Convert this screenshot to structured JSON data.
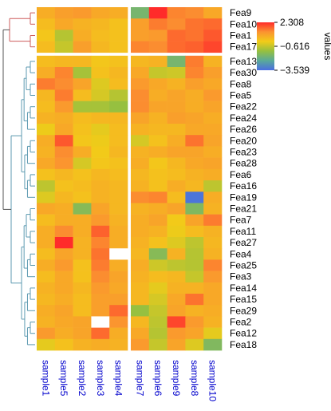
{
  "chart_data": {
    "type": "heatmap",
    "columns": [
      "sample1",
      "sample5",
      "sample2",
      "sample3",
      "sample4",
      "sample7",
      "sample6",
      "sample9",
      "sample8",
      "sample10"
    ],
    "rows": [
      "Fea9",
      "Fea10",
      "Fea1",
      "Fea17",
      "Fea13",
      "Fea30",
      "Fea8",
      "Fea5",
      "Fea22",
      "Fea24",
      "Fea26",
      "Fea20",
      "Fea23",
      "Fea28",
      "Fea6",
      "Fea16",
      "Fea19",
      "Fea21",
      "Fea7",
      "Fea11",
      "Fea27",
      "Fea4",
      "Fea25",
      "Fea3",
      "Fea14",
      "Fea15",
      "Fea29",
      "Fea2",
      "Fea12",
      "Fea18"
    ],
    "row_split": 4,
    "col_split": 5,
    "values": [
      [
        0.6,
        0.9,
        1.0,
        0.7,
        0.6,
        -1.8,
        2.3,
        1.3,
        1.2,
        0.7
      ],
      [
        0.3,
        0.7,
        0.5,
        0.4,
        0.2,
        0.9,
        1.4,
        1.2,
        1.5,
        1.6
      ],
      [
        0.1,
        -0.8,
        0.6,
        0.3,
        0.2,
        0.9,
        1.0,
        1.6,
        1.5,
        1.8
      ],
      [
        0.3,
        -0.6,
        0.9,
        0.4,
        0.2,
        1.3,
        1.2,
        1.6,
        1.7,
        2.0
      ],
      [
        0.3,
        0.4,
        0.4,
        0.1,
        0.2,
        0.4,
        0.5,
        -1.8,
        1.4,
        0.5
      ],
      [
        0.6,
        1.3,
        -1.0,
        0.2,
        0.4,
        0.7,
        -0.6,
        -0.5,
        1.3,
        0.9
      ],
      [
        1.4,
        1.2,
        0.8,
        -0.3,
        0.3,
        1.0,
        0.7,
        0.5,
        0.9,
        0.7
      ],
      [
        0.4,
        1.4,
        0.3,
        -0.4,
        -0.8,
        1.2,
        0.6,
        0.8,
        0.6,
        1.0
      ],
      [
        0.3,
        1.0,
        -1.0,
        -1.0,
        -1.2,
        1.2,
        0.8,
        0.8,
        0.6,
        0.8
      ],
      [
        0.5,
        0.6,
        0.3,
        0.4,
        0.4,
        0.8,
        0.5,
        0.9,
        0.8,
        0.6
      ],
      [
        -0.1,
        0.7,
        0.2,
        -0.2,
        0.3,
        0.5,
        0.4,
        0.4,
        0.7,
        0.7
      ],
      [
        0.6,
        1.8,
        0.1,
        -0.1,
        0.3,
        -0.4,
        0.2,
        0.6,
        1.5,
        0.8
      ],
      [
        0.5,
        1.2,
        0.6,
        0.0,
        0.4,
        0.5,
        0.6,
        0.8,
        0.8,
        0.6
      ],
      [
        0.7,
        1.1,
        -0.4,
        0.1,
        0.2,
        0.6,
        0.1,
        0.4,
        0.7,
        0.8
      ],
      [
        0.2,
        0.4,
        0.2,
        0.4,
        0.3,
        0.4,
        0.2,
        0.3,
        0.5,
        0.6
      ],
      [
        -0.7,
        0.2,
        0.3,
        0.5,
        0.4,
        0.5,
        0.2,
        0.6,
        0.4,
        -0.7
      ],
      [
        -0.3,
        0.4,
        0.2,
        0.5,
        0.4,
        1.2,
        1.3,
        0.3,
        -3.4,
        0.6
      ],
      [
        0.7,
        0.6,
        -1.5,
        0.8,
        0.4,
        0.5,
        0.6,
        0.8,
        -1.6,
        0.5
      ],
      [
        0.3,
        0.6,
        0.6,
        1.0,
        0.5,
        0.6,
        0.8,
        0.0,
        0.8,
        1.4
      ],
      [
        0.6,
        1.2,
        0.6,
        1.7,
        0.6,
        0.6,
        0.5,
        -0.1,
        0.3,
        0.5
      ],
      [
        0.6,
        2.3,
        0.5,
        1.3,
        0.6,
        0.5,
        0.2,
        -0.3,
        -0.7,
        0.4
      ],
      [
        0.3,
        0.8,
        0.5,
        1.5,
        null,
        0.4,
        -1.5,
        0.5,
        -0.8,
        0.5
      ],
      [
        0.6,
        1.0,
        0.2,
        1.4,
        0.6,
        0.6,
        -0.5,
        -0.7,
        -0.8,
        1.3
      ],
      [
        0.3,
        0.7,
        0.2,
        1.2,
        0.8,
        0.5,
        0.3,
        0.4,
        -0.6,
        1.0
      ],
      [
        0.5,
        0.7,
        0.4,
        1.0,
        0.7,
        0.4,
        -0.2,
        0.5,
        0.5,
        0.7
      ],
      [
        0.4,
        0.6,
        0.3,
        0.9,
        0.9,
        0.4,
        -0.4,
        0.7,
        1.5,
        0.7
      ],
      [
        0.6,
        0.8,
        0.3,
        0.9,
        1.6,
        -1.2,
        -0.6,
        0.8,
        0.5,
        0.6
      ],
      [
        0.5,
        0.7,
        0.8,
        null,
        1.1,
        0.4,
        -0.7,
        2.0,
        1.0,
        0.5
      ],
      [
        1.0,
        0.6,
        0.8,
        1.6,
        0.6,
        0.7,
        -0.8,
        1.0,
        0.8,
        -0.2
      ],
      [
        -0.2,
        0.2,
        0.5,
        0.6,
        0.5,
        1.0,
        -0.6,
        0.8,
        -0.3,
        -1.6
      ]
    ],
    "color_scale": {
      "min": -3.539,
      "mid": -0.616,
      "max": 2.308,
      "stops": [
        "#4a6ee2",
        "#5aaa9a",
        "#96c040",
        "#f2cc18",
        "#fb9330",
        "#ff2a2a"
      ]
    },
    "na_color": "#ffffff",
    "legend": {
      "title": "values",
      "ticks": [
        "2.308",
        "−0.616",
        "−3.539"
      ],
      "placement": "right"
    },
    "dendrogram_colors": {
      "top_cluster": "#cd5c5c",
      "bottom_cluster": "#5c9ab0",
      "root": "#555555"
    }
  }
}
